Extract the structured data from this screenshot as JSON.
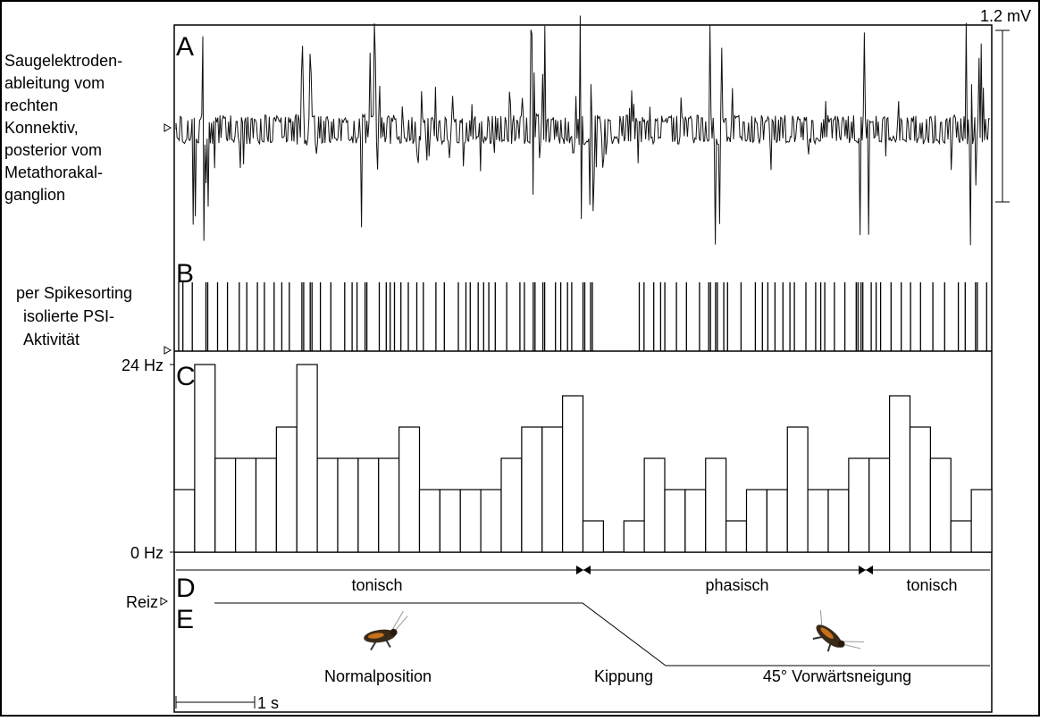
{
  "panels": {
    "a": {
      "letter": "A",
      "label": [
        "Saugelektroden-",
        "ableitung vom",
        "rechten",
        "Konnektiv,",
        "posterior vom",
        "Metathorakal-",
        "ganglion"
      ],
      "scale": "1.2 mV"
    },
    "b": {
      "letter": "B",
      "label": [
        "per Spikesorting",
        "isolierte PSI-",
        "Aktivität"
      ]
    },
    "d": {
      "letter": "D",
      "phases": [
        "tonisch",
        "phasisch",
        "tonisch"
      ]
    },
    "e": {
      "letter": "E",
      "stimulus": "Reiz",
      "positions": [
        "Normalposition",
        "Kippung",
        "45° Vorwärtsneigung"
      ]
    }
  },
  "time_scale": "1 s",
  "chart_data": {
    "type": "bar",
    "letter": "C",
    "values": [
      8,
      24,
      12,
      12,
      12,
      16,
      24,
      12,
      12,
      12,
      12,
      16,
      8,
      8,
      8,
      8,
      12,
      16,
      16,
      20,
      4,
      0,
      4,
      12,
      8,
      8,
      12,
      4,
      8,
      8,
      16,
      8,
      8,
      12,
      12,
      20,
      16,
      12,
      4,
      8
    ],
    "ylim": [
      0,
      24
    ],
    "yticks": [
      {
        "value": 0,
        "label": "0 Hz"
      },
      {
        "value": 24,
        "label": "24 Hz"
      }
    ],
    "color": "#ffffff"
  }
}
